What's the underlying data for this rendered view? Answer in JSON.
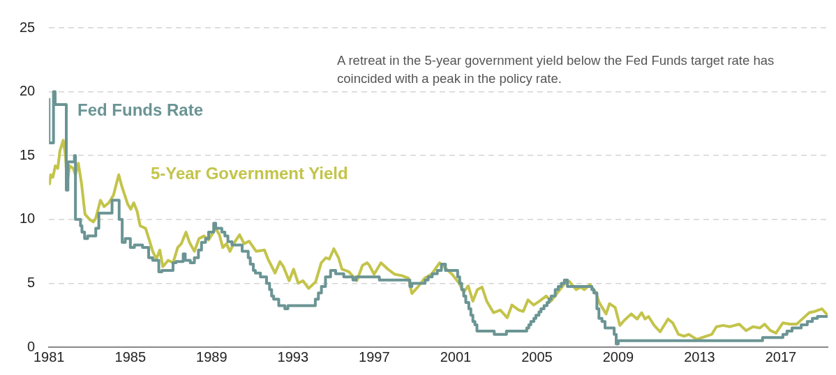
{
  "chart_data": {
    "type": "line",
    "annotations": [
      "A retreat in the 5-year government yield below the Fed Funds target rate has coincided with a peak in the policy rate."
    ],
    "xlim": [
      1981,
      2019.3
    ],
    "xticks": [
      1981,
      1985,
      1989,
      1993,
      1997,
      2001,
      2005,
      2009,
      2013,
      2017
    ],
    "ylim": [
      0,
      25
    ],
    "yticks": [
      0,
      5,
      10,
      15,
      20,
      25
    ],
    "grid": "y",
    "legend": false,
    "marker": "none",
    "line_style": "solid",
    "series": [
      {
        "name": "Fed Funds Rate",
        "type": "step",
        "color": "#6b9494",
        "x": [
          1981.0,
          1981.22,
          1981.3,
          1981.85,
          1981.93,
          1982.25,
          1982.3,
          1982.55,
          1982.62,
          1982.75,
          1982.9,
          1983.3,
          1983.45,
          1984.1,
          1984.45,
          1984.6,
          1984.75,
          1985.0,
          1985.2,
          1985.6,
          1985.9,
          1986.1,
          1986.4,
          1986.55,
          1987.1,
          1987.25,
          1987.6,
          1987.7,
          1987.95,
          1988.15,
          1988.35,
          1988.5,
          1988.7,
          1988.85,
          1989.1,
          1989.2,
          1989.5,
          1989.65,
          1989.8,
          1990.0,
          1990.5,
          1990.8,
          1990.9,
          1991.05,
          1991.15,
          1991.4,
          1991.7,
          1991.85,
          1991.95,
          1992.05,
          1992.3,
          1992.6,
          1992.75,
          1994.1,
          1994.25,
          1994.4,
          1994.6,
          1994.85,
          1995.1,
          1995.5,
          1995.95,
          1996.1,
          1997.25,
          1998.75,
          1998.85,
          1999.5,
          1999.65,
          1999.85,
          2000.1,
          2000.3,
          2000.5,
          2001.1,
          2001.2,
          2001.3,
          2001.4,
          2001.5,
          2001.65,
          2001.75,
          2001.85,
          2001.95,
          2002.05,
          2002.9,
          2003.5,
          2004.5,
          2004.6,
          2004.7,
          2004.85,
          2004.95,
          2005.1,
          2005.2,
          2005.35,
          2005.5,
          2005.6,
          2005.7,
          2005.9,
          2006.05,
          2006.2,
          2006.35,
          2006.5,
          2007.7,
          2007.8,
          2007.95,
          2008.05,
          2008.2,
          2008.35,
          2008.8,
          2008.9,
          2009.0,
          2016.1,
          2017.1,
          2017.3,
          2017.55,
          2018.0,
          2018.3,
          2018.55,
          2018.8,
          2019.2,
          2019.3
        ],
        "values": [
          19.5,
          16,
          20,
          19,
          12.3,
          14.5,
          15,
          10,
          9.5,
          9,
          8.5,
          8.7,
          9.3,
          10.5,
          11.5,
          10,
          8.2,
          8.5,
          7.8,
          8,
          7.8,
          7,
          6.8,
          5.9,
          6.0,
          6.6,
          6.7,
          7.3,
          6.8,
          6.6,
          7.0,
          7.6,
          8.2,
          8.5,
          9.0,
          9.7,
          9.3,
          9.0,
          8.7,
          8.25,
          8.0,
          7.5,
          7.0,
          6.5,
          6.0,
          5.8,
          5.5,
          5.0,
          4.5,
          4.0,
          3.75,
          3.25,
          3.0,
          3.25,
          3.75,
          4.25,
          4.75,
          5.5,
          6.0,
          5.75,
          5.5,
          5.25,
          5.5,
          5.25,
          4.75,
          5.0,
          5.25,
          5.5,
          5.75,
          6.0,
          6.5,
          6.0,
          5.5,
          5.0,
          4.5,
          4.0,
          3.5,
          3.0,
          2.5,
          2.0,
          1.75,
          1.25,
          1.0,
          1.25,
          1.5,
          1.75,
          2.0,
          2.25,
          2.5,
          2.75,
          3.0,
          3.25,
          3.5,
          3.75,
          4.0,
          4.5,
          4.75,
          5.0,
          5.25,
          4.75,
          4.5,
          4.25,
          3.0,
          2.25,
          2.0,
          1.5,
          1.0,
          0.25,
          0.5,
          0.75,
          1.0,
          1.25,
          1.5,
          1.75,
          2.0,
          2.25,
          2.4,
          2.4
        ]
      },
      {
        "name": "5-Year Government Yield",
        "type": "line",
        "color": "#c3c44a",
        "x": [
          1981.02,
          1981.08,
          1981.19,
          1981.31,
          1981.43,
          1981.54,
          1981.7,
          1981.81,
          1981.89,
          1982.01,
          1982.19,
          1982.3,
          1982.44,
          1982.6,
          1982.77,
          1983.0,
          1983.18,
          1983.3,
          1983.53,
          1983.71,
          1983.94,
          1984.17,
          1984.43,
          1984.58,
          1984.87,
          1985.02,
          1985.17,
          1985.34,
          1985.48,
          1985.75,
          1985.93,
          1986.1,
          1986.28,
          1986.45,
          1986.6,
          1986.86,
          1987.1,
          1987.33,
          1987.51,
          1987.74,
          1987.91,
          1988.15,
          1988.38,
          1988.62,
          1988.85,
          1989.2,
          1989.38,
          1989.55,
          1989.73,
          1989.9,
          1990.08,
          1990.37,
          1990.6,
          1990.84,
          1991.19,
          1991.6,
          1991.77,
          1992.12,
          1992.36,
          1992.53,
          1992.81,
          1993.03,
          1993.26,
          1993.49,
          1993.77,
          1994.11,
          1994.39,
          1994.62,
          1994.79,
          1995.01,
          1995.24,
          1995.41,
          1995.75,
          1996.14,
          1996.42,
          1996.65,
          1996.76,
          1996.99,
          1997.33,
          1997.67,
          1998.01,
          1998.35,
          1998.68,
          1998.85,
          1999.14,
          1999.48,
          1999.81,
          2000.21,
          2000.49,
          2000.83,
          2001.17,
          2001.4,
          2001.62,
          2001.85,
          2002.07,
          2002.3,
          2002.53,
          2002.86,
          2003.2,
          2003.54,
          2003.77,
          2004.11,
          2004.33,
          2004.56,
          2004.84,
          2005.12,
          2005.46,
          2005.69,
          2006.03,
          2006.48,
          2006.59,
          2006.93,
          2007.16,
          2007.33,
          2007.61,
          2007.89,
          2008.06,
          2008.4,
          2008.57,
          2008.85,
          2009.08,
          2009.3,
          2009.64,
          2009.93,
          2010.15,
          2010.32,
          2010.49,
          2010.77,
          2011.06,
          2011.45,
          2011.68,
          2011.96,
          2012.24,
          2012.47,
          2012.86,
          2013.32,
          2013.6,
          2013.83,
          2014.16,
          2014.5,
          2014.95,
          2015.29,
          2015.63,
          2015.97,
          2016.2,
          2016.48,
          2016.76,
          2017.1,
          2017.44,
          2017.78,
          2018.12,
          2018.4,
          2018.68,
          2019.02,
          2019.3
        ],
        "values": [
          12.7,
          13.5,
          13.3,
          14.2,
          14.0,
          15.4,
          16.2,
          15.0,
          12.8,
          14.2,
          14.0,
          13.5,
          14.4,
          12.8,
          10.4,
          10.0,
          9.8,
          10.1,
          11.5,
          11.0,
          11.3,
          11.9,
          13.5,
          12.6,
          11.2,
          10.8,
          11.3,
          10.6,
          9.5,
          9.3,
          8.4,
          7.5,
          6.9,
          7.6,
          6.3,
          6.8,
          6.6,
          7.8,
          8.1,
          9.0,
          8.2,
          7.5,
          8.5,
          8.7,
          8.4,
          9.3,
          8.8,
          7.8,
          8.1,
          7.5,
          8.1,
          8.8,
          8.1,
          8.3,
          7.5,
          7.6,
          6.9,
          5.8,
          6.7,
          6.3,
          5.2,
          6.1,
          5.0,
          5.2,
          4.6,
          5.1,
          6.6,
          7.0,
          6.9,
          7.7,
          7.0,
          6.1,
          5.9,
          5.2,
          6.4,
          6.6,
          6.4,
          5.7,
          6.6,
          6.1,
          5.7,
          5.6,
          5.4,
          4.2,
          4.7,
          5.4,
          5.7,
          6.6,
          6.2,
          5.7,
          5.0,
          4.3,
          4.8,
          3.6,
          4.5,
          4.7,
          3.6,
          2.7,
          2.9,
          2.3,
          3.3,
          2.9,
          2.8,
          3.7,
          3.3,
          3.6,
          4.0,
          3.6,
          4.3,
          5.2,
          5.15,
          4.5,
          4.7,
          4.5,
          4.9,
          4.3,
          3.5,
          2.6,
          3.4,
          3.1,
          1.7,
          2.1,
          2.6,
          2.2,
          2.7,
          2.2,
          2.4,
          1.7,
          1.2,
          2.2,
          1.9,
          1.0,
          0.85,
          1.0,
          0.6,
          0.85,
          1.0,
          1.6,
          1.7,
          1.6,
          1.8,
          1.3,
          1.6,
          1.5,
          1.8,
          1.3,
          1.1,
          1.9,
          1.8,
          1.8,
          2.3,
          2.7,
          2.8,
          3.0,
          2.5
        ]
      }
    ]
  }
}
